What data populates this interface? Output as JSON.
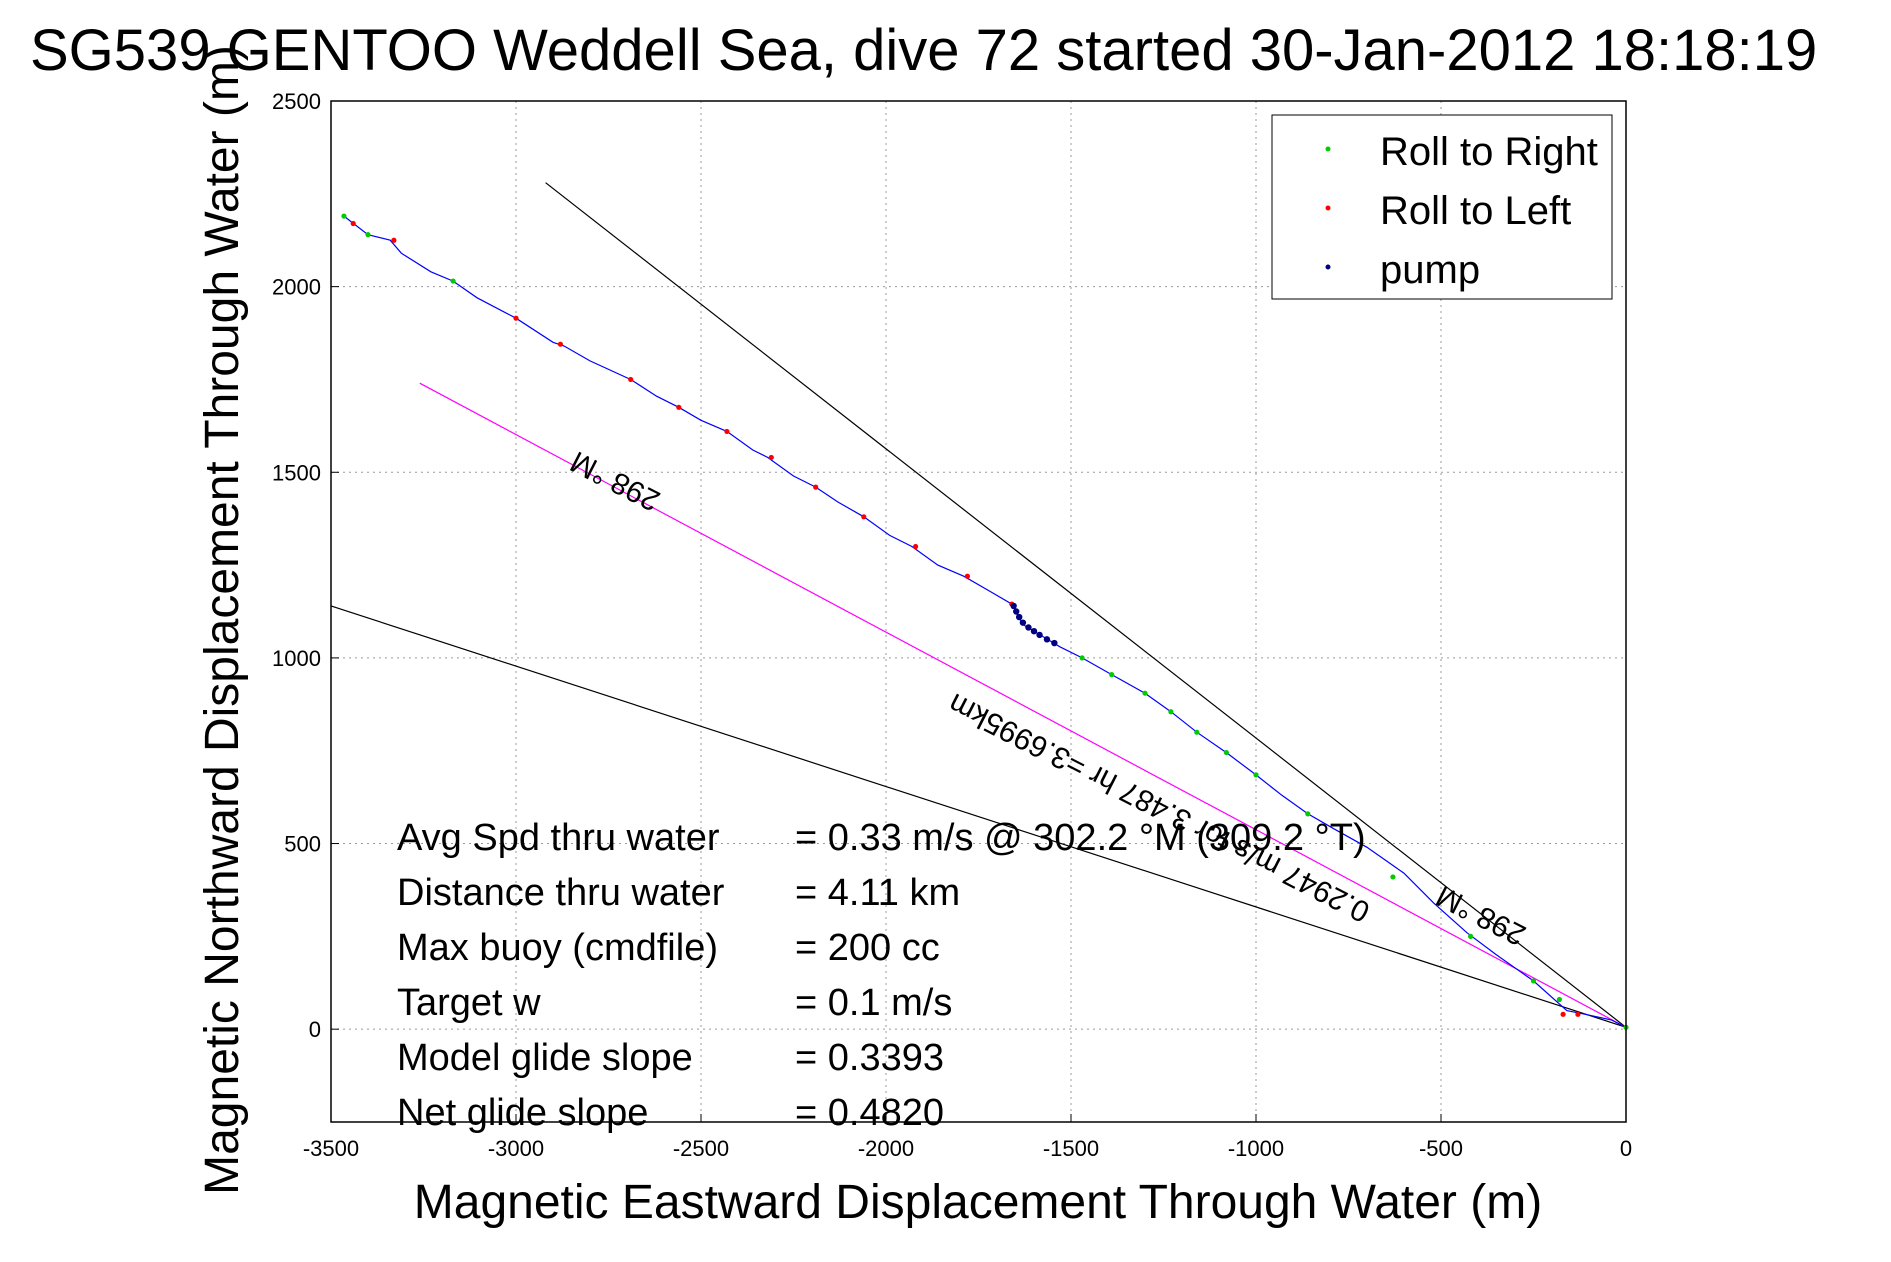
{
  "chart_data": {
    "type": "scatter",
    "title": "SG539 GENTOO Weddell Sea, dive 72 started 30-Jan-2012 18:18:19",
    "xlabel": "Magnetic Eastward Displacement Through Water (m)",
    "ylabel": "Magnetic Northward Displacement Through Water (m)",
    "xlim": [
      -3500,
      0
    ],
    "ylim": [
      -250,
      2500
    ],
    "xticks": [
      -3500,
      -3000,
      -2500,
      -2000,
      -1500,
      -1000,
      -500,
      0
    ],
    "yticks": [
      0,
      500,
      1000,
      1500,
      2000,
      2500
    ],
    "grid": true,
    "legend_position": "top-right",
    "legend": [
      {
        "name": "Roll to Right",
        "color": "#00cc00"
      },
      {
        "name": "Roll to Left",
        "color": "#ff0000"
      },
      {
        "name": "pump",
        "color": "#000080"
      }
    ],
    "track_color": "#0000ff",
    "track": [
      [
        -3465,
        2190
      ],
      [
        -3400,
        2140
      ],
      [
        -3340,
        2125
      ],
      [
        -3310,
        2090
      ],
      [
        -3230,
        2040
      ],
      [
        -3170,
        2015
      ],
      [
        -3105,
        1970
      ],
      [
        -3000,
        1915
      ],
      [
        -2900,
        1850
      ],
      [
        -2870,
        1840
      ],
      [
        -2800,
        1800
      ],
      [
        -2690,
        1750
      ],
      [
        -2620,
        1705
      ],
      [
        -2560,
        1675
      ],
      [
        -2500,
        1640
      ],
      [
        -2430,
        1610
      ],
      [
        -2360,
        1560
      ],
      [
        -2320,
        1540
      ],
      [
        -2250,
        1490
      ],
      [
        -2190,
        1460
      ],
      [
        -2130,
        1420
      ],
      [
        -2060,
        1380
      ],
      [
        -1990,
        1330
      ],
      [
        -1930,
        1300
      ],
      [
        -1860,
        1250
      ],
      [
        -1790,
        1220
      ],
      [
        -1720,
        1180
      ],
      [
        -1660,
        1145
      ],
      [
        -1630,
        1090
      ],
      [
        -1580,
        1060
      ],
      [
        -1530,
        1030
      ],
      [
        -1470,
        1000
      ],
      [
        -1390,
        955
      ],
      [
        -1300,
        905
      ],
      [
        -1230,
        855
      ],
      [
        -1160,
        800
      ],
      [
        -1080,
        745
      ],
      [
        -1000,
        685
      ],
      [
        -930,
        630
      ],
      [
        -860,
        580
      ],
      [
        -790,
        540
      ],
      [
        -700,
        490
      ],
      [
        -600,
        420
      ],
      [
        -520,
        340
      ],
      [
        -430,
        260
      ],
      [
        -350,
        200
      ],
      [
        -250,
        130
      ],
      [
        -160,
        50
      ],
      [
        -110,
        40
      ],
      [
        -40,
        25
      ],
      [
        0,
        5
      ]
    ],
    "roll_right_points": [
      [
        -3465,
        2190
      ],
      [
        -3400,
        2140
      ],
      [
        -3170,
        2015
      ],
      [
        -1470,
        1000
      ],
      [
        -1390,
        955
      ],
      [
        -1300,
        905
      ],
      [
        -1230,
        855
      ],
      [
        -1160,
        800
      ],
      [
        -1080,
        745
      ],
      [
        -1000,
        685
      ],
      [
        -860,
        580
      ],
      [
        -630,
        410
      ],
      [
        -420,
        250
      ],
      [
        -250,
        130
      ],
      [
        -180,
        80
      ],
      [
        0,
        5
      ]
    ],
    "roll_left_points": [
      [
        -3440,
        2170
      ],
      [
        -3330,
        2125
      ],
      [
        -3000,
        1915
      ],
      [
        -2880,
        1845
      ],
      [
        -2690,
        1750
      ],
      [
        -2560,
        1675
      ],
      [
        -2430,
        1610
      ],
      [
        -2310,
        1540
      ],
      [
        -2190,
        1460
      ],
      [
        -2060,
        1380
      ],
      [
        -1920,
        1300
      ],
      [
        -1780,
        1220
      ],
      [
        -1660,
        1145
      ],
      [
        -170,
        40
      ],
      [
        -130,
        40
      ]
    ],
    "pump_points": [
      [
        -1655,
        1140
      ],
      [
        -1648,
        1125
      ],
      [
        -1640,
        1110
      ],
      [
        -1630,
        1095
      ],
      [
        -1615,
        1082
      ],
      [
        -1600,
        1072
      ],
      [
        -1585,
        1062
      ],
      [
        -1565,
        1050
      ],
      [
        -1545,
        1040
      ]
    ],
    "reference_lines": [
      {
        "name": "heading-upper",
        "color": "#000000",
        "x": [
          -2920,
          0
        ],
        "y": [
          2280,
          5
        ]
      },
      {
        "name": "heading-lower",
        "color": "#000000",
        "x": [
          -3500,
          0
        ],
        "y": [
          1140,
          5
        ]
      },
      {
        "name": "current-line",
        "color": "#ff00ff",
        "x": [
          -3260,
          0
        ],
        "y": [
          1740,
          5
        ]
      }
    ],
    "annotations": [
      {
        "text": "298 °M",
        "x": -2720,
        "y": 1500,
        "angle": 207
      },
      {
        "text": "0.2947 m/s for 3.487 hr =3.6995km",
        "x": -1250,
        "y": 620,
        "angle": 207
      },
      {
        "text": "298 °M",
        "x": -380,
        "y": 330,
        "angle": 207
      }
    ],
    "stats": [
      {
        "label": "Avg Spd thru water",
        "value": "=  0.33 m/s @ 302.2 °M (309.2 °T)"
      },
      {
        "label": "Distance thru water",
        "value": "=  4.11 km"
      },
      {
        "label": "Max buoy (cmdfile)",
        "value": "= 200 cc"
      },
      {
        "label": "Target w",
        "value": "= 0.1 m/s"
      },
      {
        "label": "Model glide slope",
        "value": "= 0.3393"
      },
      {
        "label": "Net glide slope",
        "value": "= 0.4820"
      }
    ]
  }
}
